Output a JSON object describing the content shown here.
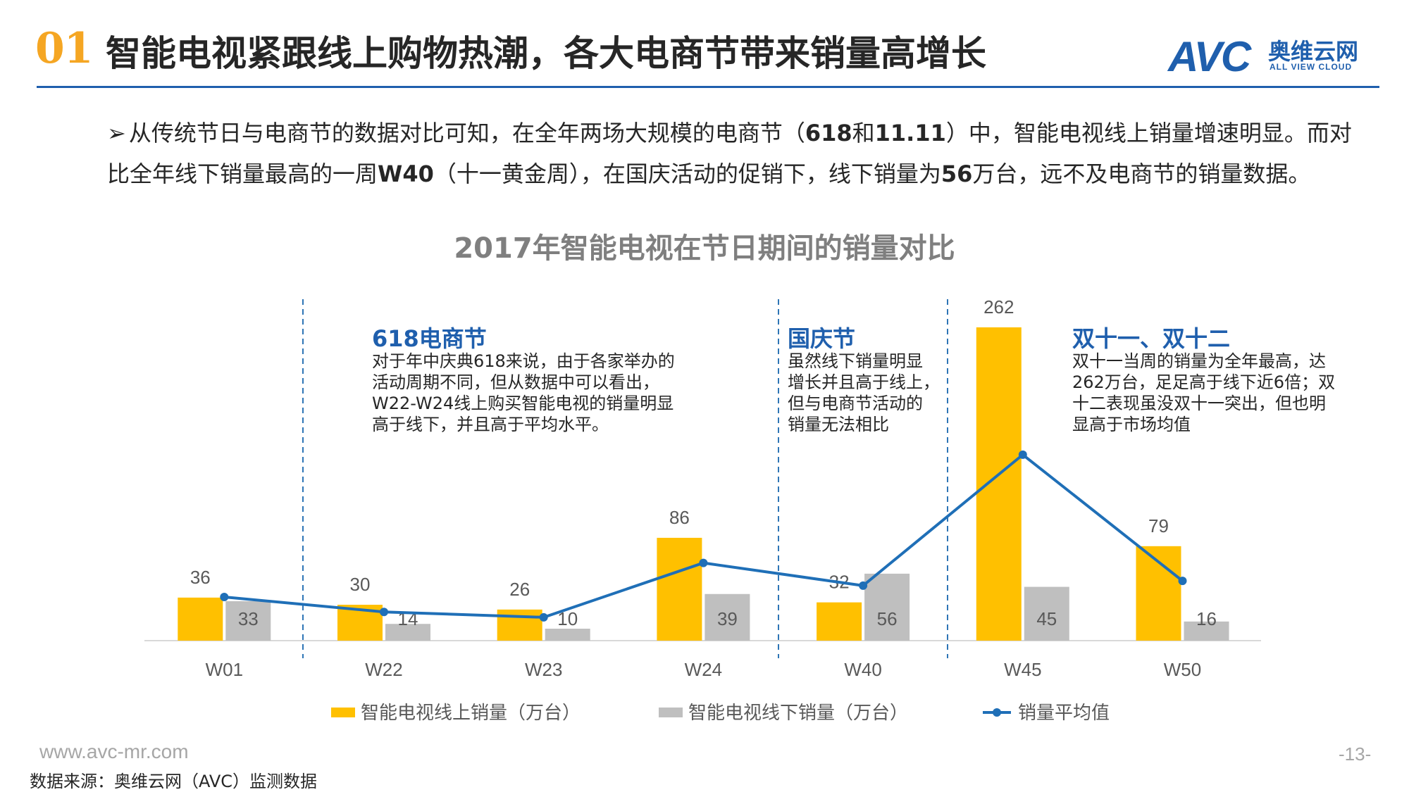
{
  "header": {
    "number": "01",
    "title": "智能电视紧跟线上购物热潮，各大电商节带来销量高增长"
  },
  "logo": {
    "brand": "AVC",
    "cn": "奥维云网",
    "en": "ALL VIEW CLOUD"
  },
  "bullet": {
    "arrow": "➢",
    "t1": "从传统节日与电商节的数据对比可知，在全年两场大规模的电商节（",
    "b1": "618",
    "t2": "和",
    "b2": "11.11",
    "t3": "）中，智能电视线上销量增速明显。而对比全年线下销量最高的一周",
    "b3": "W40",
    "t4": "（十一黄金周），在国庆活动的促销下，线下销量为",
    "b4": "56",
    "t5": "万台，远不及电商节的销量数据。"
  },
  "annotations": [
    {
      "title": "618电商节",
      "body": [
        "对于年中庆典618来说，由于各家举办的",
        "活动周期不同，但从数据中可以看出，",
        "W22-W24线上购买智能电视的销量明显",
        "高于线下，并且高于平均水平。"
      ]
    },
    {
      "title": "国庆节",
      "body": [
        "虽然线下销量明显",
        "增长并且高于线上，",
        "但与电商节活动的",
        "销量无法相比"
      ]
    },
    {
      "title": "双十一、双十二",
      "body": [
        "双十一当周的销量为全年最高，达",
        "262万台，足足高于线下近6倍；双",
        "十二表现虽没双十一突出，但也明",
        "显高于市场均值"
      ]
    }
  ],
  "footer": {
    "url": "www.avc-mr.com",
    "page": "-13-",
    "source": "数据来源：奥维云网（AVC）监测数据"
  },
  "colors": {
    "online": "#FFC000",
    "offline": "#BFBFBF",
    "average": "#1F6FB7",
    "accent": "#1F5FAD",
    "number": "#F5A623"
  },
  "chart_data": {
    "type": "bar",
    "title": "2017年智能电视在节日期间的销量对比",
    "categories": [
      "W01",
      "W22",
      "W23",
      "W24",
      "W40",
      "W45",
      "W50"
    ],
    "series": [
      {
        "name": "智能电视线上销量（万台）",
        "type": "bar",
        "values": [
          36,
          30,
          26,
          86,
          32,
          262,
          79
        ]
      },
      {
        "name": "智能电视线下销量（万台）",
        "type": "bar",
        "values": [
          33,
          14,
          10,
          39,
          56,
          45,
          16
        ]
      },
      {
        "name": "销量平均值",
        "type": "line",
        "values": [
          36.5,
          24,
          19.5,
          65,
          46,
          155.5,
          50
        ]
      }
    ],
    "ylim": [
      0,
      275
    ],
    "grid": false,
    "legend": "bottom"
  }
}
